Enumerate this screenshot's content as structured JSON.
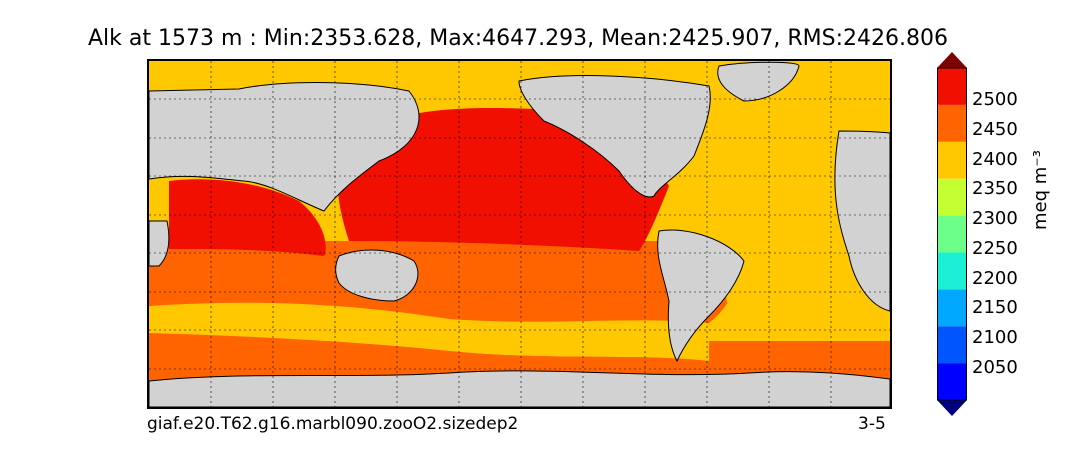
{
  "title": "Alk at 1573 m : Min:2353.628, Max:4647.293, Mean:2425.907, RMS:2426.806",
  "run_label": "giaf.e20.T62.g16.marbl090.zooO2.sizedep2",
  "months_label": "3-5",
  "colorbar": {
    "units_label": "meq m⁻³",
    "tick_labels": [
      "2500",
      "2450",
      "2400",
      "2350",
      "2300",
      "2250",
      "2200",
      "2150",
      "2100",
      "2050"
    ],
    "colors": [
      "#00007f",
      "#0000ff",
      "#0055ff",
      "#00a8ff",
      "#1cf0d4",
      "#6cff8a",
      "#c4ff32",
      "#ffc800",
      "#ff6400",
      "#f00f00",
      "#7f0000"
    ],
    "extend": "both"
  },
  "map_colors": {
    "land": "#d2d2d2",
    "ice_or_missing": "#ffffff",
    "band_2350": "#ffc800",
    "band_2400": "#ff6400",
    "band_2450": "#f00f00",
    "band_2500": "#7f0000"
  }
}
